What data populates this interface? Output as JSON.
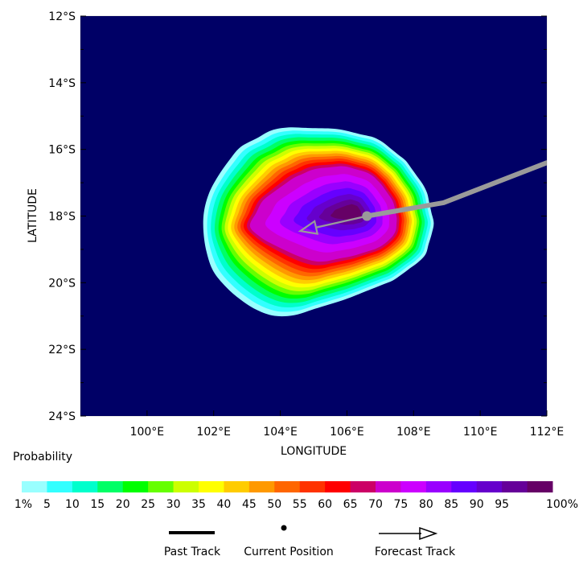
{
  "map": {
    "xlabel": "LONGITUDE",
    "ylabel": "LATITUDE",
    "lon_range": [
      98,
      112
    ],
    "lat_range": [
      -24,
      -12
    ],
    "background_color": "#000066",
    "x_ticks": [
      {
        "value": 100,
        "label": "100°E"
      },
      {
        "value": 102,
        "label": "102°E"
      },
      {
        "value": 104,
        "label": "104°E"
      },
      {
        "value": 106,
        "label": "106°E"
      },
      {
        "value": 108,
        "label": "108°E"
      },
      {
        "value": 110,
        "label": "110°E"
      },
      {
        "value": 112,
        "label": "112°E"
      }
    ],
    "y_ticks": [
      {
        "value": -12,
        "label": "12°S"
      },
      {
        "value": -14,
        "label": "14°S"
      },
      {
        "value": -16,
        "label": "16°S"
      },
      {
        "value": -18,
        "label": "18°S"
      },
      {
        "value": -20,
        "label": "20°S"
      },
      {
        "value": -22,
        "label": "22°S"
      },
      {
        "value": -24,
        "label": "24°S"
      }
    ],
    "probability_peak": {
      "lon": 106.2,
      "lat": -17.9
    },
    "current_position": {
      "lon": 106.6,
      "lat": -18.0
    },
    "past_track": [
      {
        "lon": 112.0,
        "lat": -16.4
      },
      {
        "lon": 108.9,
        "lat": -17.6
      },
      {
        "lon": 106.6,
        "lat": -18.0
      }
    ],
    "forecast_track": [
      {
        "lon": 106.6,
        "lat": -18.0
      },
      {
        "lon": 104.6,
        "lat": -18.45
      }
    ],
    "track_color": "#9a9a9a"
  },
  "colorbar": {
    "title": "Probability",
    "colors": [
      "#99ffff",
      "#33ffff",
      "#00ffcc",
      "#00ff66",
      "#00ff00",
      "#66ff00",
      "#ccff00",
      "#ffff00",
      "#ffcc00",
      "#ff9900",
      "#ff6600",
      "#ff3300",
      "#ff0000",
      "#cc0066",
      "#cc00cc",
      "#cc00ff",
      "#9900ff",
      "#6600ff",
      "#6600cc",
      "#660099",
      "#660066"
    ],
    "labels": [
      "1%",
      "5",
      "10",
      "15",
      "20",
      "25",
      "30",
      "35",
      "40",
      "45",
      "50",
      "55",
      "60",
      "65",
      "70",
      "75",
      "80",
      "85",
      "90",
      "95",
      "100%"
    ]
  },
  "legend": {
    "past_track": "Past Track",
    "current_position": "Current Position",
    "forecast_track": "Forecast Track"
  }
}
